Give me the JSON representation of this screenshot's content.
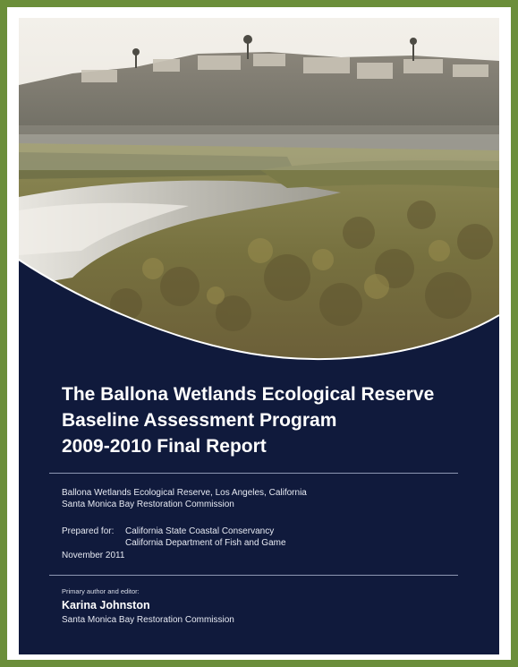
{
  "report": {
    "title_lines": [
      "The Ballona Wetlands Ecological Reserve",
      "Baseline Assessment Program",
      "2009-2010 Final Report"
    ],
    "location_line": "Ballona Wetlands Ecological Reserve, Los Angeles, California",
    "organization_line": "Santa Monica Bay Restoration Commission",
    "prepared_for_label": "Prepared for:",
    "prepared_for_1": "California State Coastal Conservancy",
    "prepared_for_2": "California Department of Fish and Game",
    "date": "November 2011",
    "author_label": "Primary author and editor:",
    "author_name": "Karina Johnston",
    "author_org": "Santa Monica Bay Restoration Commission"
  },
  "colors": {
    "frame": "#6b8e3a",
    "cover_navy": "#101a3c",
    "text": "#ffffff"
  }
}
